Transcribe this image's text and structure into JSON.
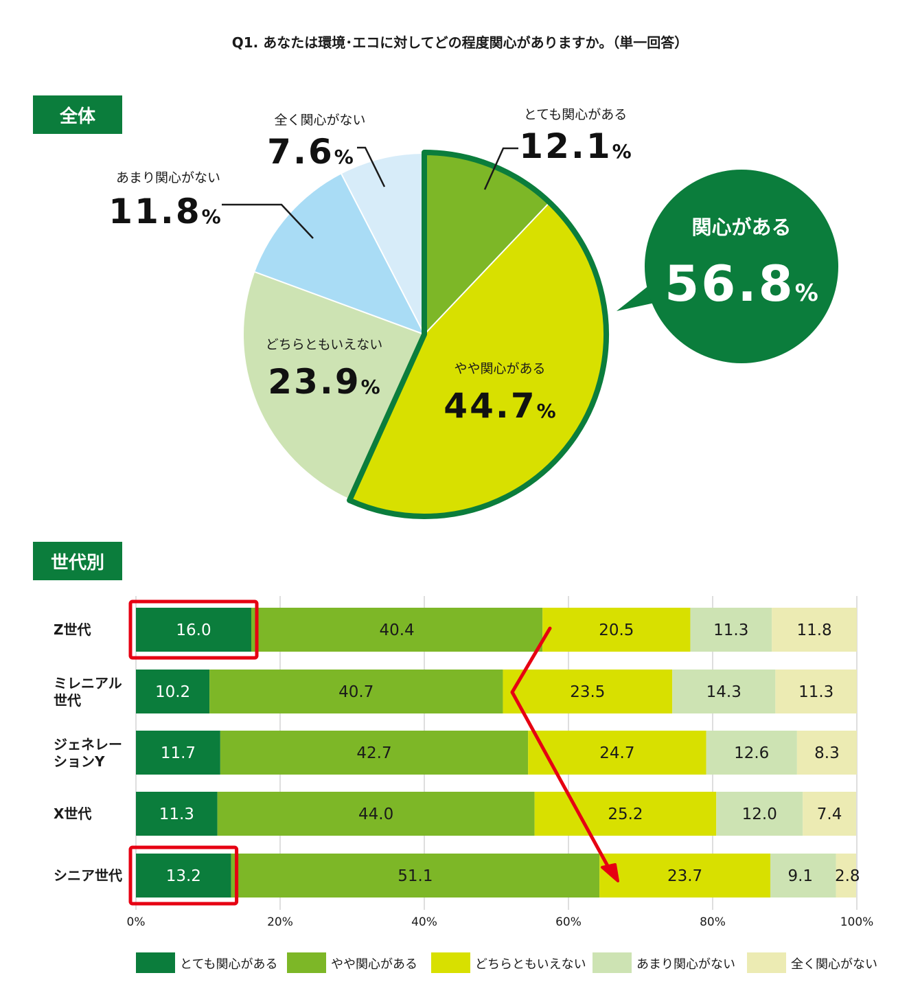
{
  "title": "Q1. あなたは環境･エコに対してどの程度関心がありますか。（単一回答）",
  "sections": {
    "overall": "全体",
    "by_generation": "世代別"
  },
  "percent_sign": "%",
  "callout": {
    "label": "関心がある",
    "value": "56.8"
  },
  "colors": {
    "very_interested": "#0b7d3c",
    "somewhat_interested": "#7db727",
    "neutral": "#d8e000",
    "not_very": "#cde3b3",
    "not_at_all": "#ecebb3",
    "pie_not_very": "#a9dcf5",
    "pie_not_at_all": "#d7ecf9",
    "highlight": "#e60012"
  },
  "chart_data": [
    {
      "type": "pie",
      "slices": [
        {
          "label": "とても関心がある",
          "value": 12.1,
          "display": "12.1"
        },
        {
          "label": "やや関心がある",
          "value": 44.7,
          "display": "44.7"
        },
        {
          "label": "どちらともいえない",
          "value": 23.9,
          "display": "23.9"
        },
        {
          "label": "あまり関心がない",
          "value": 11.8,
          "display": "11.8"
        },
        {
          "label": "全く関心がない",
          "value": 7.6,
          "display": "7.6"
        }
      ]
    },
    {
      "type": "bar",
      "orientation": "horizontal-stacked-100",
      "categories": [
        [
          "Z世代"
        ],
        [
          "ミレニアル",
          "世代"
        ],
        [
          "ジェネレー",
          "ションY"
        ],
        [
          "X世代"
        ],
        [
          "シニア世代"
        ]
      ],
      "series": [
        {
          "name": "とても関心がある",
          "values": [
            16.0,
            10.2,
            11.7,
            11.3,
            13.2
          ],
          "display": [
            "16.0",
            "10.2",
            "11.7",
            "11.3",
            "13.2"
          ]
        },
        {
          "name": "やや関心がある",
          "values": [
            40.4,
            40.7,
            42.7,
            44.0,
            51.1
          ],
          "display": [
            "40.4",
            "40.7",
            "42.7",
            "44.0",
            "51.1"
          ]
        },
        {
          "name": "どちらともいえない",
          "values": [
            20.5,
            23.5,
            24.7,
            25.2,
            23.7
          ],
          "display": [
            "20.5",
            "23.5",
            "24.7",
            "25.2",
            "23.7"
          ]
        },
        {
          "name": "あまり関心がない",
          "values": [
            11.3,
            14.3,
            12.6,
            12.0,
            9.1
          ],
          "display": [
            "11.3",
            "14.3",
            "12.6",
            "12.0",
            "9.1"
          ]
        },
        {
          "name": "全く関心がない",
          "values": [
            11.8,
            11.3,
            8.3,
            7.4,
            2.8
          ],
          "display": [
            "11.8",
            "11.3",
            "8.3",
            "7.4",
            "2.8"
          ]
        }
      ],
      "xlim": [
        0,
        100
      ],
      "xticks": [
        "0%",
        "20%",
        "40%",
        "60%",
        "80%",
        "100%"
      ],
      "grid": true,
      "legend": "bottom",
      "highlighted": [
        "Z世代 とても関心がある",
        "シニア世代 とても関心がある"
      ]
    }
  ]
}
